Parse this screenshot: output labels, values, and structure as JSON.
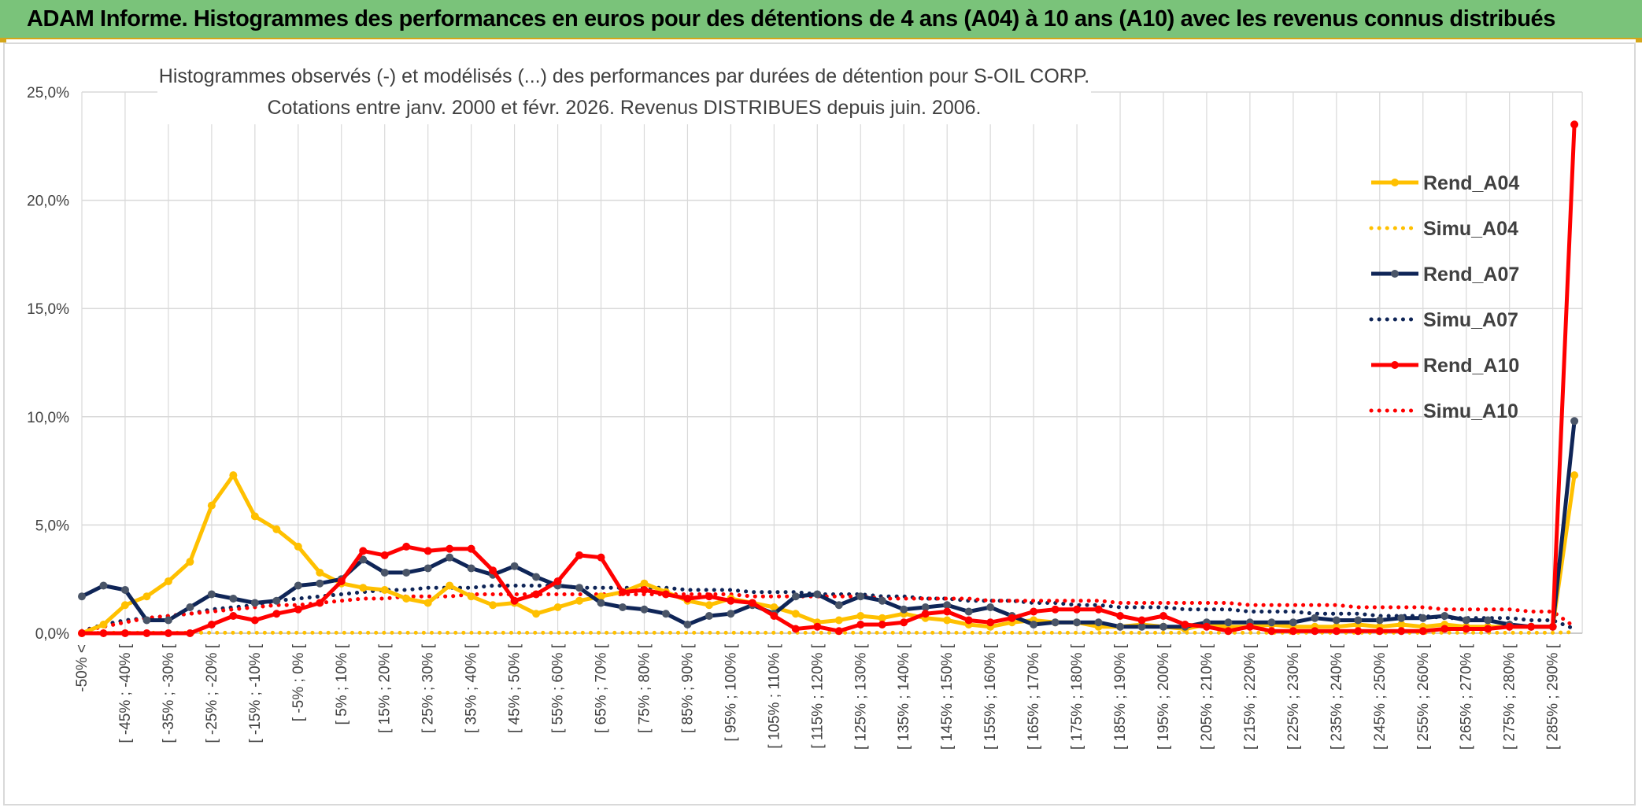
{
  "banner_title": "ADAM Informe. Histogrammes des performances en euros pour des détentions de 4 ans (A04) à 10 ans (A10) avec les revenus connus distribués",
  "chart_data": {
    "type": "line",
    "title_line1": "Histogrammes observés (-) et modélisés (...) des performances par durées de détention pour S-OIL CORP.",
    "title_line2": "Cotations entre janv. 2000 et févr. 2026. Revenus DISTRIBUES depuis juin. 2006.",
    "ylim": [
      0,
      25
    ],
    "yticks": [
      "0,0%",
      "5,0%",
      "10,0%",
      "15,0%",
      "20,0%",
      "25,0%"
    ],
    "ytick_values": [
      0,
      5,
      10,
      15,
      20,
      25
    ],
    "x_count": 70,
    "x_labels": [
      "-50% <",
      "[ -45% ; -40% [",
      "[ -35% ; -30% [",
      "[ -25% ; -20% [",
      "[ -15% ; -10% [",
      "[ -5% ; 0% [",
      "[ 5% ; 10% [",
      "[ 15% ; 20% [",
      "[ 25% ; 30% [",
      "[ 35% ; 40% [",
      "[ 45% ; 50% [",
      "[ 55% ; 60% [",
      "[ 65% ; 70% [",
      "[ 75% ; 80% [",
      "[ 85% ; 90% [",
      "[ 95% ; 100% [",
      "[ 105% ; 110% [",
      "[ 115% ; 120% [",
      "[ 125% ; 130% [",
      "[ 135% ; 140% [",
      "[ 145% ; 150% [",
      "[ 155% ; 160% [",
      "[ 165% ; 170% [",
      "[ 175% ; 180% [",
      "[ 185% ; 190% [",
      "[ 195% ; 200% [",
      "[ 205% ; 210% [",
      "[ 215% ; 220% [",
      "[ 225% ; 230% [",
      "[ 235% ; 240% [",
      "[ 245% ; 250% [",
      "[ 255% ; 260% [",
      "[ 265% ; 270% [",
      "[ 275% ; 280% [",
      "[ 285% ; 290% ["
    ],
    "x_label_positions": [
      0,
      2,
      4,
      6,
      8,
      10,
      12,
      14,
      16,
      18,
      20,
      22,
      24,
      26,
      28,
      30,
      32,
      34,
      36,
      38,
      40,
      42,
      44,
      46,
      48,
      50,
      52,
      54,
      56,
      58,
      60,
      62,
      64,
      66,
      68
    ],
    "series": [
      {
        "name": "Rend_A04",
        "color": "#ffc000",
        "style": "solid",
        "values": [
          0.0,
          0.4,
          1.3,
          1.7,
          2.4,
          3.3,
          5.9,
          7.3,
          5.4,
          4.8,
          4.0,
          2.8,
          2.3,
          2.1,
          2.0,
          1.6,
          1.4,
          2.2,
          1.7,
          1.3,
          1.4,
          0.9,
          1.2,
          1.5,
          1.7,
          1.9,
          2.3,
          1.9,
          1.5,
          1.3,
          1.6,
          1.4,
          1.2,
          0.9,
          0.5,
          0.6,
          0.8,
          0.7,
          0.9,
          0.7,
          0.6,
          0.4,
          0.3,
          0.5,
          0.6,
          0.5,
          0.5,
          0.3,
          0.3,
          0.4,
          0.3,
          0.2,
          0.4,
          0.3,
          0.3,
          0.4,
          0.3,
          0.3,
          0.3,
          0.4,
          0.3,
          0.4,
          0.3,
          0.4,
          0.3,
          0.3,
          0.3,
          0.3,
          0.3,
          7.3
        ]
      },
      {
        "name": "Simu_A04",
        "color": "#ffc000",
        "style": "dotted",
        "values": [
          0.0,
          0.02,
          0.02,
          0.02,
          0.02,
          0.02,
          0.02,
          0.02,
          0.02,
          0.02,
          0.02,
          0.02,
          0.02,
          0.02,
          0.02,
          0.02,
          0.02,
          0.02,
          0.02,
          0.02,
          0.02,
          0.02,
          0.02,
          0.02,
          0.02,
          0.02,
          0.02,
          0.02,
          0.02,
          0.02,
          0.02,
          0.02,
          0.02,
          0.02,
          0.02,
          0.02,
          0.02,
          0.02,
          0.02,
          0.02,
          0.02,
          0.02,
          0.02,
          0.02,
          0.02,
          0.02,
          0.02,
          0.02,
          0.02,
          0.02,
          0.02,
          0.02,
          0.02,
          0.02,
          0.02,
          0.02,
          0.02,
          0.02,
          0.02,
          0.02,
          0.02,
          0.02,
          0.02,
          0.02,
          0.02,
          0.02,
          0.02,
          0.02,
          0.02,
          0.05
        ]
      },
      {
        "name": "Rend_A07",
        "color": "#0f2557",
        "style": "solid",
        "values": [
          1.7,
          2.2,
          2.0,
          0.6,
          0.6,
          1.2,
          1.8,
          1.6,
          1.4,
          1.5,
          2.2,
          2.3,
          2.5,
          3.4,
          2.8,
          2.8,
          3.0,
          3.5,
          3.0,
          2.7,
          3.1,
          2.6,
          2.2,
          2.1,
          1.4,
          1.2,
          1.1,
          0.9,
          0.4,
          0.8,
          0.9,
          1.3,
          0.9,
          1.7,
          1.8,
          1.3,
          1.7,
          1.5,
          1.1,
          1.2,
          1.3,
          1.0,
          1.2,
          0.8,
          0.4,
          0.5,
          0.5,
          0.5,
          0.3,
          0.3,
          0.3,
          0.3,
          0.5,
          0.5,
          0.5,
          0.5,
          0.5,
          0.7,
          0.6,
          0.6,
          0.6,
          0.7,
          0.7,
          0.8,
          0.6,
          0.6,
          0.4,
          0.3,
          0.3,
          9.8
        ]
      },
      {
        "name": "Simu_A07",
        "color": "#0f2557",
        "style": "dotted",
        "values": [
          0.1,
          0.4,
          0.6,
          0.7,
          0.8,
          0.9,
          1.1,
          1.2,
          1.3,
          1.5,
          1.6,
          1.7,
          1.8,
          1.9,
          2.0,
          2.0,
          2.1,
          2.1,
          2.1,
          2.2,
          2.2,
          2.2,
          2.2,
          2.1,
          2.1,
          2.1,
          2.1,
          2.1,
          2.0,
          2.0,
          2.0,
          1.9,
          1.9,
          1.9,
          1.8,
          1.8,
          1.8,
          1.7,
          1.7,
          1.6,
          1.6,
          1.5,
          1.5,
          1.5,
          1.4,
          1.4,
          1.3,
          1.3,
          1.2,
          1.2,
          1.2,
          1.1,
          1.1,
          1.1,
          1.0,
          1.0,
          1.0,
          0.9,
          0.9,
          0.9,
          0.8,
          0.8,
          0.8,
          0.7,
          0.7,
          0.7,
          0.7,
          0.6,
          0.6,
          0.2
        ]
      },
      {
        "name": "Rend_A10",
        "color": "#ff0000",
        "style": "solid",
        "values": [
          0.0,
          0.0,
          0.0,
          0.0,
          0.0,
          0.0,
          0.4,
          0.8,
          0.6,
          0.9,
          1.1,
          1.4,
          2.4,
          3.8,
          3.6,
          4.0,
          3.8,
          3.9,
          3.9,
          2.9,
          1.5,
          1.8,
          2.4,
          3.6,
          3.5,
          1.9,
          2.0,
          1.8,
          1.6,
          1.7,
          1.5,
          1.4,
          0.8,
          0.2,
          0.3,
          0.1,
          0.4,
          0.4,
          0.5,
          0.9,
          1.0,
          0.6,
          0.5,
          0.7,
          1.0,
          1.1,
          1.1,
          1.1,
          0.8,
          0.6,
          0.8,
          0.4,
          0.3,
          0.1,
          0.3,
          0.1,
          0.1,
          0.1,
          0.1,
          0.1,
          0.1,
          0.1,
          0.1,
          0.2,
          0.2,
          0.2,
          0.3,
          0.3,
          0.3,
          23.5
        ]
      },
      {
        "name": "Simu_A10",
        "color": "#ff0000",
        "style": "dotted",
        "values": [
          0.1,
          0.3,
          0.5,
          0.7,
          0.8,
          0.9,
          1.0,
          1.1,
          1.2,
          1.3,
          1.3,
          1.4,
          1.5,
          1.6,
          1.6,
          1.7,
          1.7,
          1.7,
          1.8,
          1.8,
          1.8,
          1.8,
          1.8,
          1.8,
          1.8,
          1.8,
          1.8,
          1.8,
          1.8,
          1.8,
          1.8,
          1.7,
          1.7,
          1.7,
          1.7,
          1.7,
          1.7,
          1.6,
          1.6,
          1.6,
          1.6,
          1.6,
          1.5,
          1.5,
          1.5,
          1.5,
          1.5,
          1.5,
          1.4,
          1.4,
          1.4,
          1.4,
          1.4,
          1.4,
          1.3,
          1.3,
          1.3,
          1.3,
          1.3,
          1.2,
          1.2,
          1.2,
          1.2,
          1.1,
          1.1,
          1.1,
          1.1,
          1.0,
          1.0,
          0.3
        ]
      }
    ],
    "legend_position": "right",
    "grid": true
  }
}
